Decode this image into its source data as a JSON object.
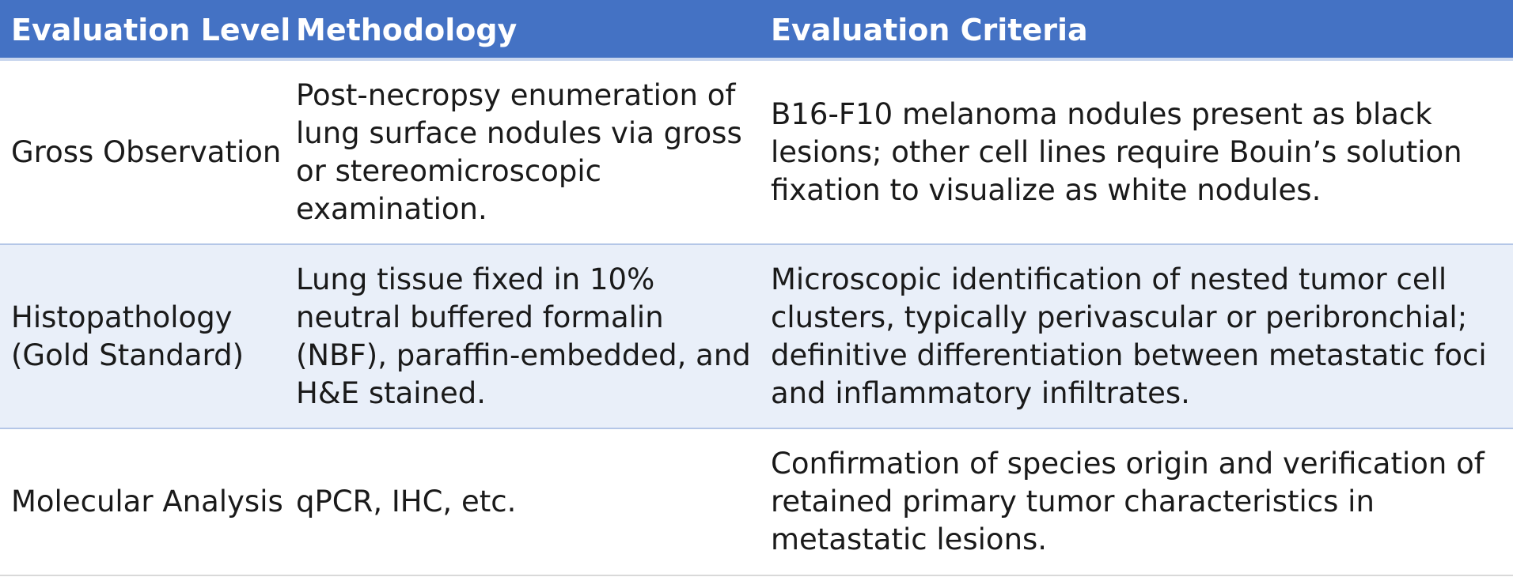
{
  "header": {
    "col1": "Evaluation Level",
    "col2": "Methodology",
    "col3": "Evaluation Criteria"
  },
  "rows": [
    {
      "level": "Gross Observation",
      "methodology": "Post-necropsy enumeration of lung surface nodules via gross or stereomicroscopic examination.",
      "criteria": "B16-F10 melanoma nodules present as black lesions; other cell lines require Bouin’s solution fixation to visualize as white nodules."
    },
    {
      "level": "Histopathology (Gold Standard)",
      "methodology": "Lung tissue fixed in 10% neutral buffered formalin (NBF), paraffin-embedded, and H&E stained.",
      "criteria": "Microscopic identification of nested tumor cell clusters, typically perivascular or peribronchial; definitive differentiation between metastatic foci and inflammatory infiltrates."
    },
    {
      "level": "Molecular Analysis",
      "methodology": "qPCR, IHC, etc.",
      "criteria": "Confirmation of species origin and verification of retained primary tumor characteristics in metastatic lesions."
    }
  ],
  "colors": {
    "header_bg": "#4472c4",
    "header_text": "#ffffff",
    "alt_row_bg": "#e9eff9",
    "row_divider": "#b4c6e7"
  }
}
